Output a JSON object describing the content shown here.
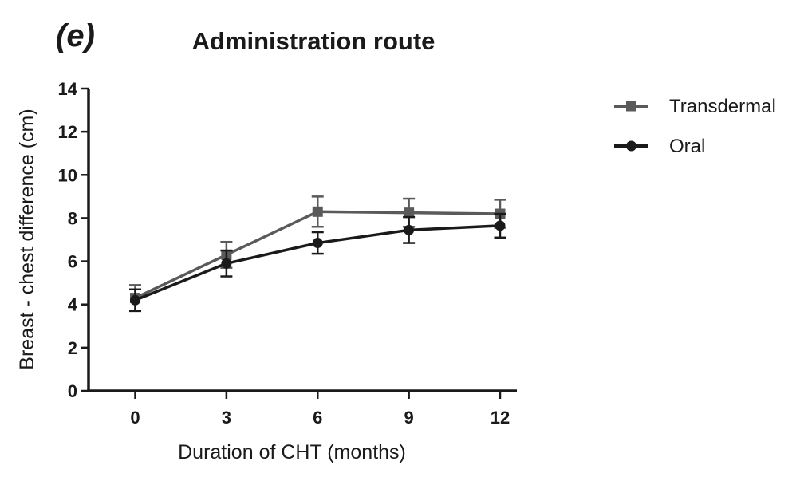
{
  "figure": {
    "label": "(e)",
    "title": "Administration route"
  },
  "legend": {
    "position": "right",
    "items": [
      {
        "label": "Transdermal",
        "marker": "square",
        "color": "#5a5a5a"
      },
      {
        "label": "Oral",
        "marker": "circle",
        "color": "#1a1a1a"
      }
    ]
  },
  "chart_data": {
    "type": "line",
    "title": "Administration route",
    "xlabel": "Duration of CHT (months)",
    "ylabel": "Breast - chest difference (cm)",
    "x": [
      0,
      3,
      6,
      9,
      12
    ],
    "xticks": [
      0,
      3,
      6,
      9,
      12
    ],
    "yticks": [
      0,
      2,
      4,
      6,
      8,
      10,
      12,
      14
    ],
    "xlim": [
      0,
      12
    ],
    "ylim": [
      0,
      14
    ],
    "grid": false,
    "legend_position": "right",
    "error_bars": true,
    "series": [
      {
        "name": "Transdermal",
        "marker": "square",
        "color": "#5a5a5a",
        "values": [
          4.3,
          6.3,
          8.3,
          8.25,
          8.2
        ],
        "errors": [
          0.6,
          0.6,
          0.7,
          0.65,
          0.65
        ]
      },
      {
        "name": "Oral",
        "marker": "circle",
        "color": "#1a1a1a",
        "values": [
          4.2,
          5.9,
          6.85,
          7.45,
          7.65
        ],
        "errors": [
          0.5,
          0.6,
          0.5,
          0.6,
          0.55
        ]
      }
    ]
  },
  "colors": {
    "axis": "#1a1a1a",
    "background": "#ffffff"
  }
}
